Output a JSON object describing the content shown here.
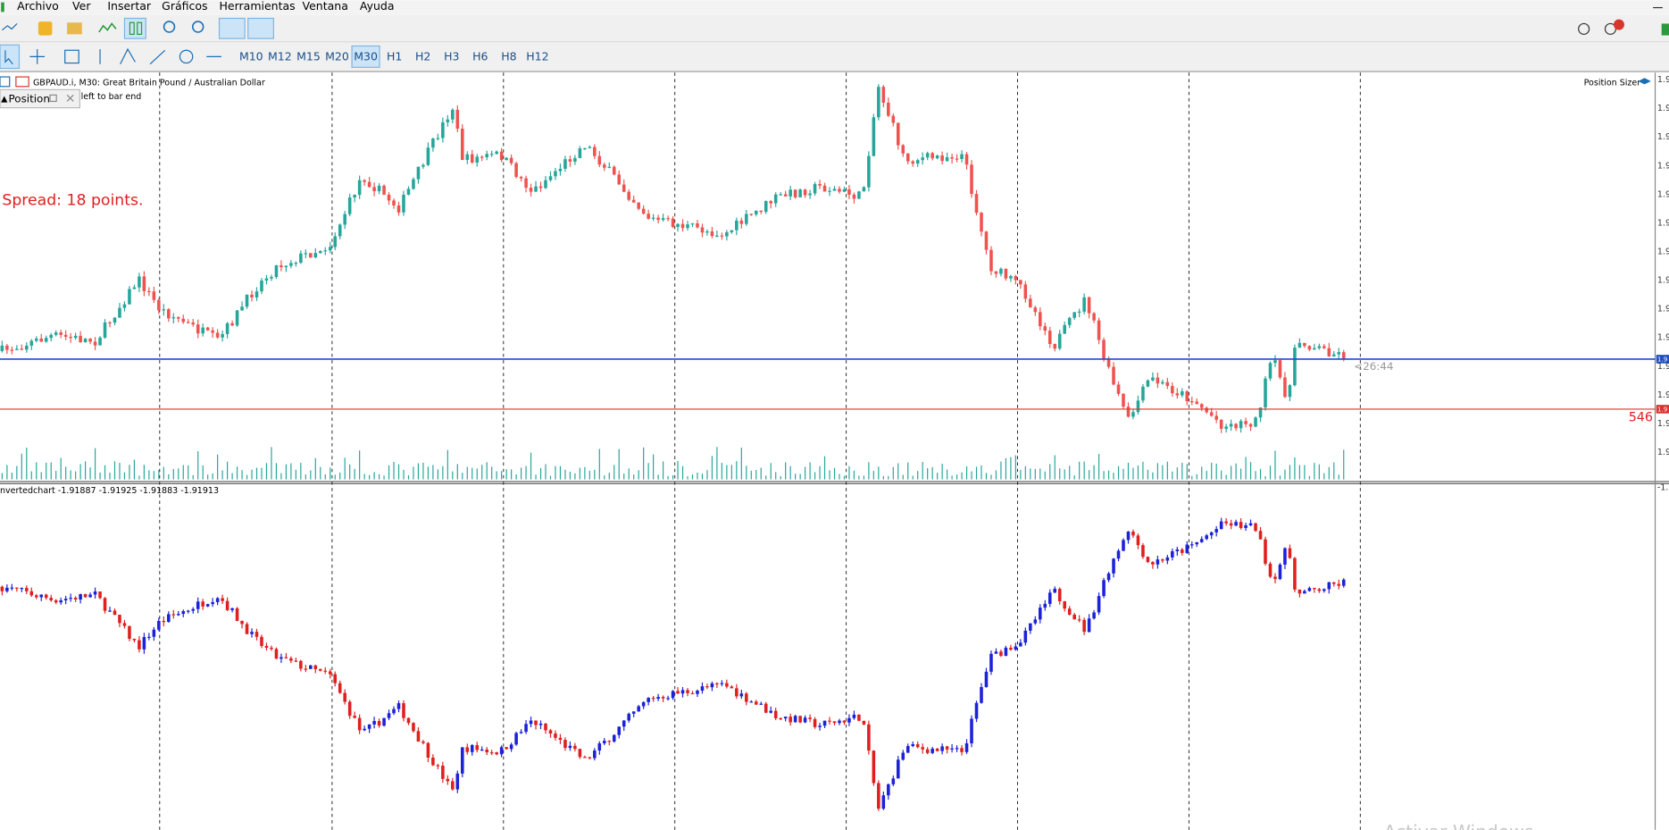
{
  "menu": {
    "items": [
      "Archivo",
      "Ver",
      "Insertar",
      "Gráficos",
      "Herramientas",
      "Ventana",
      "Ayuda"
    ]
  },
  "toolbar": {
    "timeframes": [
      "M10",
      "M12",
      "M15",
      "M20",
      "M30",
      "H1",
      "H2",
      "H3",
      "H6",
      "H8",
      "H12"
    ],
    "active": "M30"
  },
  "main_chart": {
    "header": "GBPAUD.i, M30:  Great Britain Pound / Australian Dollar",
    "panel_title": "Position",
    "countdown_note": "left to bar end",
    "spread": "Spread: 18 points.",
    "indicator": "Position Sizer",
    "bar_timer": "<26:44",
    "line_label": "546",
    "price_axis_labels": [
      "1.9",
      "1.9",
      "1.9",
      "1.9",
      "1.9",
      "1.9",
      "1.9",
      "1.9",
      "1.9",
      "1.9",
      "1.9",
      "1.9",
      "1.9",
      "1.9"
    ],
    "blue_line_tag": "1.9",
    "red_line_tag": "1.9"
  },
  "sub_chart": {
    "header": "nvertedchart -1.91887 -1.91925 -1.91883 -1.91913",
    "axis_label": "-1."
  },
  "watermark": "Activar Windows"
}
